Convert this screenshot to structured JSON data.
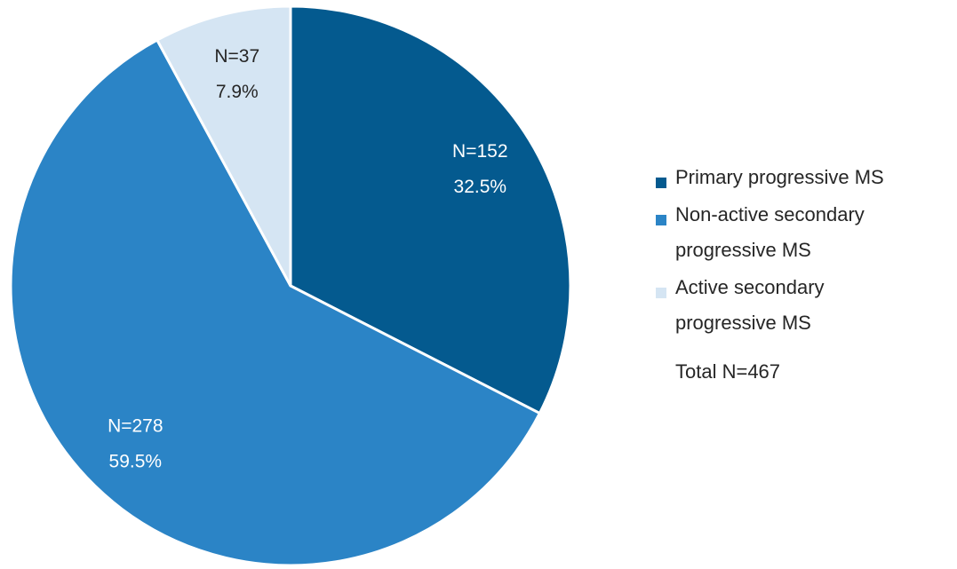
{
  "chart_data": {
    "type": "pie",
    "categories": [
      "Primary progressive MS",
      "Non-active secondary progressive MS",
      "Active secondary progressive MS"
    ],
    "values": [
      32.5,
      59.5,
      7.9
    ],
    "value_labels": [
      "32.5%",
      "59.5%",
      "7.9%"
    ],
    "counts": [
      152,
      278,
      37
    ],
    "count_labels": [
      "N=152",
      "N=278",
      "N=37"
    ],
    "colors": [
      "#045a8f",
      "#2b84c6",
      "#d5e5f3"
    ],
    "annotation": "Total N=467"
  }
}
